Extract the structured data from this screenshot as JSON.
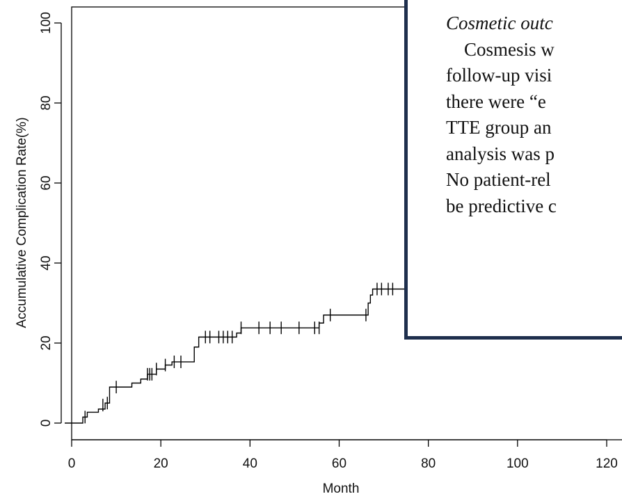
{
  "chart_data": {
    "type": "step",
    "xlabel": "Month",
    "ylabel": "Accumulative Complication Rate(%)",
    "xlim": [
      0,
      120
    ],
    "ylim": [
      0,
      100
    ],
    "xticks": [
      0,
      20,
      40,
      60,
      80,
      100,
      120
    ],
    "yticks": [
      0,
      20,
      40,
      60,
      80,
      100
    ],
    "series": [
      {
        "color": "#000000",
        "x": [
          0,
          2.5,
          3.5,
          6,
          7.5,
          8.5,
          13.5,
          15.5,
          17,
          19,
          21,
          22.5,
          27.5,
          28.5,
          37,
          38,
          55.5,
          56.5,
          66.5,
          67,
          67.5,
          75
        ],
        "values": [
          0,
          1.5,
          2.7,
          3.5,
          5,
          9,
          10,
          11,
          12.2,
          13.5,
          14.5,
          15.3,
          19,
          21.5,
          22.5,
          23.8,
          25,
          27,
          30,
          32,
          33.5,
          33.5
        ]
      }
    ],
    "censored": {
      "color": "#000000",
      "x": [
        3,
        7,
        8,
        10,
        17,
        17.5,
        18,
        19,
        21,
        23,
        24.5,
        30,
        31,
        33,
        34,
        35,
        36,
        38,
        42,
        44.5,
        47,
        51,
        54.5,
        55.5,
        58,
        66,
        68.5,
        69.5,
        71,
        72
      ],
      "values": [
        1.5,
        4.5,
        5,
        9,
        12.2,
        12.2,
        12.2,
        13.5,
        14.5,
        15.3,
        15.3,
        21.5,
        21.5,
        21.5,
        21.5,
        21.5,
        21.5,
        23.8,
        23.8,
        23.8,
        23.8,
        23.8,
        23.8,
        23.8,
        27,
        27,
        33.5,
        33.5,
        33.5,
        33.5
      ]
    }
  },
  "document": {
    "heading": "Cosmetic outc",
    "lines": [
      "Cosmesis w",
      "follow-up visi",
      "there were “e",
      "TTE group an",
      "analysis was p",
      "No patient-rel",
      "be predictive c"
    ]
  }
}
